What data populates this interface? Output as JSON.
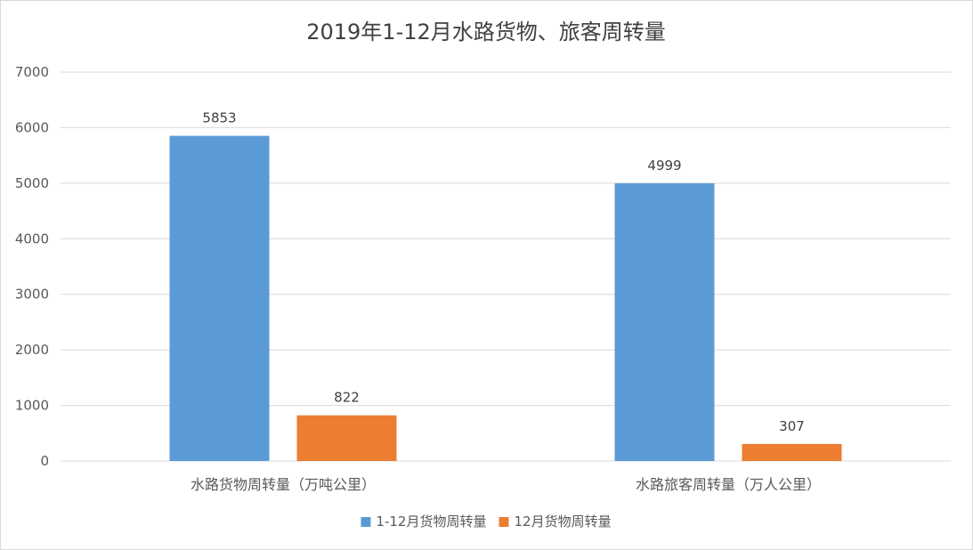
{
  "chart_data": {
    "type": "bar",
    "title": "2019年1-12月水路货物、旅客周转量",
    "categories": [
      "水路货物周转量（万吨公里）",
      "水路旅客周转量（万人公里）"
    ],
    "series": [
      {
        "name": "1-12月货物周转量",
        "values": [
          5853,
          4999
        ],
        "color": "#5b9bd5"
      },
      {
        "name": "12月货物周转量",
        "values": [
          822,
          307
        ],
        "color": "#ed7d31"
      }
    ],
    "ylim": [
      0,
      7000
    ],
    "yticks": [
      0,
      1000,
      2000,
      3000,
      4000,
      5000,
      6000,
      7000
    ],
    "grid": true,
    "legend_position": "bottom",
    "data_labels": true
  }
}
